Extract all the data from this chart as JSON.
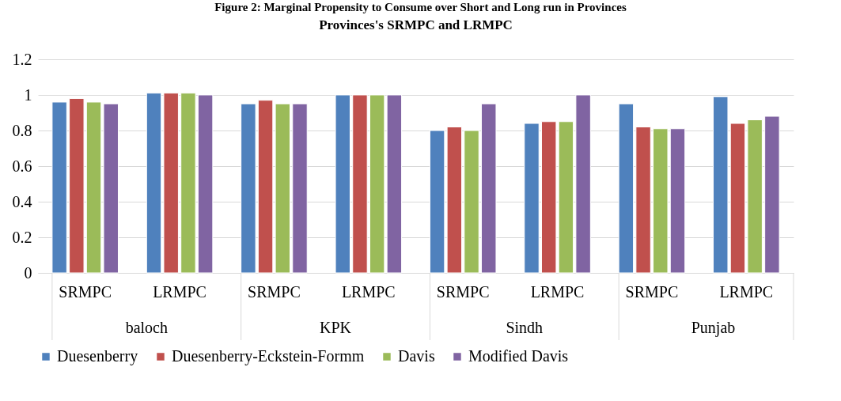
{
  "chart_data": {
    "type": "bar",
    "title": "Provinces's SRMPC and LRMPC",
    "annotations": [
      "Figure 2: Marginal Propensity to Consume over Short and Long run in Provinces",
      "baloch",
      "KPK",
      "Sindh",
      "Punjab"
    ],
    "categories": [
      "SRMPC",
      "LRMPC",
      "SRMPC",
      "LRMPC",
      "SRMPC",
      "LRMPC",
      "SRMPC",
      "LRMPC"
    ],
    "series": [
      {
        "name": "Duesenberry",
        "color": "#4f81bd",
        "values": [
          0.96,
          1.01,
          0.95,
          1.0,
          0.8,
          0.84,
          0.95,
          0.99
        ]
      },
      {
        "name": "Duesenberry-Eckstein-Formm",
        "color": "#c0504d",
        "values": [
          0.98,
          1.01,
          0.97,
          1.0,
          0.82,
          0.85,
          0.82,
          0.84
        ]
      },
      {
        "name": "Davis",
        "color": "#9bbb59",
        "values": [
          0.96,
          1.01,
          0.95,
          1.0,
          0.8,
          0.85,
          0.81,
          0.86
        ]
      },
      {
        "name": "Modified Davis",
        "color": "#8064a2",
        "values": [
          0.95,
          1.0,
          0.95,
          1.0,
          0.95,
          1.0,
          0.81,
          0.88
        ]
      }
    ],
    "ylim": [
      0,
      1.2
    ],
    "yticks": [
      0,
      0.2,
      0.4,
      0.6,
      0.8,
      1,
      1.2
    ],
    "grid": "y",
    "legend": "bottom"
  }
}
